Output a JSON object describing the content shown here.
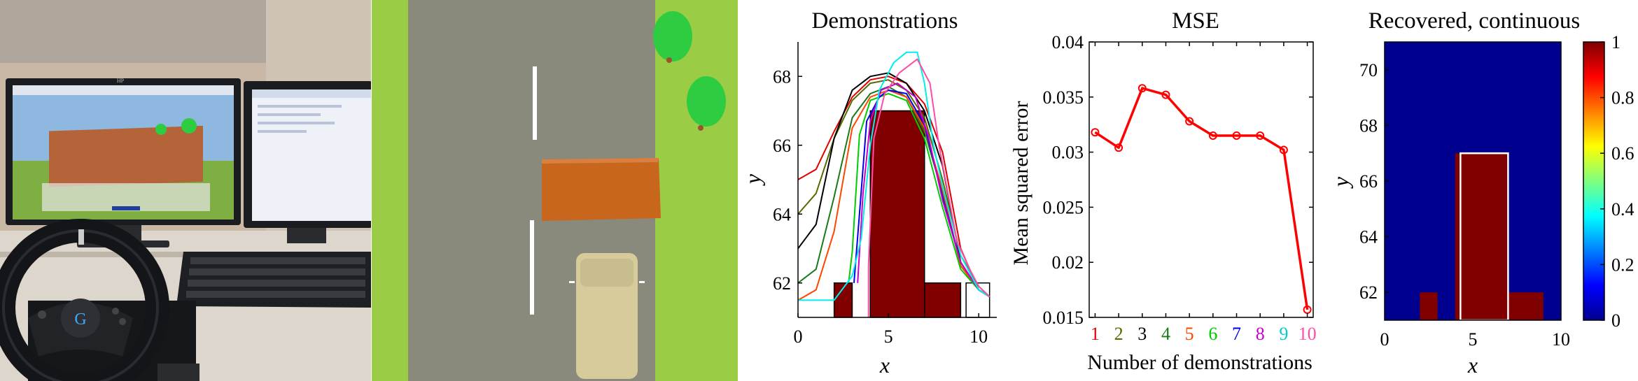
{
  "photo": {
    "monitor_brand": "HP",
    "wheel_logo": "G",
    "colors": {
      "wall": "#c9b8a6",
      "desk": "#ddd6cc",
      "monitor": "#1b1c20",
      "scene_sky": "#8fb8e0",
      "wall_obstacle": "#b5643a",
      "keyboard": "#1e1f22"
    }
  },
  "sim": {
    "colors": {
      "grass": "#9bcc45",
      "road": "#8a8a7c",
      "lane_mark": "#ffffff",
      "obstacle": "#c8661e",
      "car": "#d7cb9c",
      "tree": "#2ecc40",
      "trunk": "#a0522d"
    }
  },
  "chart_data": [
    {
      "type": "line",
      "title": "Demonstrations",
      "xlabel": "x",
      "ylabel": "y",
      "xlim": [
        0,
        11
      ],
      "ylim": [
        61,
        69
      ],
      "xticks": [
        "0",
        "5",
        "10"
      ],
      "yticks": [
        "62",
        "64",
        "66",
        "68"
      ],
      "grid": false,
      "obstacles": [
        {
          "x": [
            2,
            3
          ],
          "y": [
            61,
            62
          ]
        },
        {
          "x": [
            4,
            7
          ],
          "y": [
            61,
            67
          ]
        },
        {
          "x": [
            7,
            9
          ],
          "y": [
            61,
            62
          ]
        }
      ],
      "series": [
        {
          "color": "#e00000",
          "values": [
            [
              0,
              65
            ],
            [
              1,
              65.3
            ],
            [
              2,
              66.4
            ],
            [
              3,
              67.4
            ],
            [
              4,
              67.9
            ],
            [
              5,
              68
            ],
            [
              6,
              67.8
            ],
            [
              7,
              67.2
            ],
            [
              8,
              65.8
            ],
            [
              9,
              63
            ],
            [
              10,
              61.8
            ],
            [
              10.6,
              61.6
            ]
          ]
        },
        {
          "color": "#556b00",
          "values": [
            [
              0,
              64
            ],
            [
              1,
              64.6
            ],
            [
              2,
              66.2
            ],
            [
              3,
              67.3
            ],
            [
              4,
              67.8
            ],
            [
              5,
              67.9
            ],
            [
              6,
              67.6
            ],
            [
              7,
              66.8
            ],
            [
              8,
              65
            ],
            [
              9,
              62.8
            ],
            [
              10,
              61.9
            ],
            [
              10.6,
              61.6
            ]
          ]
        },
        {
          "color": "#000000",
          "values": [
            [
              0,
              63
            ],
            [
              1,
              63.7
            ],
            [
              2,
              66.2
            ],
            [
              3,
              67.6
            ],
            [
              4,
              68
            ],
            [
              5,
              68.1
            ],
            [
              6,
              67.8
            ],
            [
              7,
              67
            ],
            [
              8,
              65.4
            ],
            [
              9,
              62.6
            ],
            [
              10,
              61.8
            ],
            [
              10.6,
              61.6
            ]
          ]
        },
        {
          "color": "#1a7a1a",
          "values": [
            [
              0,
              62
            ],
            [
              1,
              62.4
            ],
            [
              2,
              64.5
            ],
            [
              3,
              66.8
            ],
            [
              4,
              67.5
            ],
            [
              5,
              67.7
            ],
            [
              6,
              67.4
            ],
            [
              7,
              66.4
            ],
            [
              8,
              64.6
            ],
            [
              9,
              62.5
            ],
            [
              10,
              61.8
            ],
            [
              10.6,
              61.6
            ]
          ]
        },
        {
          "color": "#ff4500",
          "values": [
            [
              0,
              61.5
            ],
            [
              1,
              61.8
            ],
            [
              2,
              63.5
            ],
            [
              3,
              66.5
            ],
            [
              4,
              67.4
            ],
            [
              5,
              67.6
            ],
            [
              6,
              67.4
            ],
            [
              7,
              66.5
            ],
            [
              8,
              64.7
            ],
            [
              9,
              62.5
            ],
            [
              10,
              61.8
            ],
            [
              10.6,
              61.6
            ]
          ]
        },
        {
          "color": "#00cc00",
          "values": [
            [
              2.8,
              62
            ],
            [
              3,
              62.9
            ],
            [
              3.4,
              66.3
            ],
            [
              4,
              67.3
            ],
            [
              5,
              67.5
            ],
            [
              6,
              67.3
            ],
            [
              7,
              66.2
            ],
            [
              8,
              64.2
            ],
            [
              9,
              62.4
            ],
            [
              10,
              61.8
            ],
            [
              10.6,
              61.6
            ]
          ]
        },
        {
          "color": "#0000ee",
          "values": [
            [
              3.1,
              62
            ],
            [
              3.4,
              64
            ],
            [
              3.8,
              66.7
            ],
            [
              4.5,
              67.4
            ],
            [
              5,
              67.6
            ],
            [
              6,
              67.5
            ],
            [
              7,
              66.6
            ],
            [
              8,
              64.5
            ],
            [
              9,
              62.6
            ],
            [
              10,
              61.8
            ],
            [
              10.6,
              61.6
            ]
          ]
        },
        {
          "color": "#cc00cc",
          "values": [
            [
              3.3,
              62
            ],
            [
              3.6,
              64.6
            ],
            [
              4,
              66.7
            ],
            [
              4.6,
              67.6
            ],
            [
              5.5,
              67.8
            ],
            [
              6.5,
              67.4
            ],
            [
              7.2,
              66.3
            ],
            [
              8,
              64.4
            ],
            [
              9,
              62.6
            ],
            [
              10,
              61.8
            ],
            [
              10.6,
              61.6
            ]
          ]
        },
        {
          "color": "#00eeee",
          "values": [
            [
              0,
              61.5
            ],
            [
              2,
              61.5
            ],
            [
              3,
              62.2
            ],
            [
              3.5,
              63.3
            ],
            [
              4,
              66
            ],
            [
              4.5,
              67.6
            ],
            [
              5.3,
              68.4
            ],
            [
              6,
              68.7
            ],
            [
              6.6,
              68.7
            ],
            [
              7,
              67.8
            ],
            [
              7.5,
              66
            ],
            [
              8,
              64.8
            ],
            [
              9,
              62.8
            ],
            [
              10,
              61.8
            ],
            [
              10.6,
              61.6
            ]
          ]
        },
        {
          "color": "#ff4da6",
          "values": [
            [
              3.9,
              61
            ],
            [
              3.9,
              62.5
            ],
            [
              4.2,
              66.2
            ],
            [
              4.8,
              67.5
            ],
            [
              5.6,
              68.1
            ],
            [
              6.6,
              68.5
            ],
            [
              7.3,
              67.8
            ],
            [
              7.8,
              66
            ],
            [
              8.8,
              63.2
            ],
            [
              9.5,
              62.4
            ],
            [
              10,
              61.9
            ],
            [
              10.6,
              61.6
            ]
          ]
        }
      ]
    },
    {
      "type": "line",
      "title": "MSE",
      "xlabel": "Number of demonstrations",
      "ylabel": "Mean squared error",
      "xlim": [
        0.75,
        10.25
      ],
      "ylim": [
        0.015,
        0.04
      ],
      "yticks": [
        "0.015",
        "0.02",
        "0.025",
        "0.03",
        "0.035",
        "0.04"
      ],
      "categories": [
        "1",
        "2",
        "3",
        "4",
        "5",
        "6",
        "7",
        "8",
        "9",
        "10"
      ],
      "category_colors": [
        "#e00000",
        "#556b00",
        "#000000",
        "#1a7a1a",
        "#ff4500",
        "#00cc00",
        "#0000ee",
        "#cc00cc",
        "#00cccc",
        "#ff4da6"
      ],
      "series": [
        {
          "color": "#ff0000",
          "values": [
            0.0318,
            0.0304,
            0.0358,
            0.0352,
            0.0328,
            0.0315,
            0.0315,
            0.0315,
            0.0302,
            0.0157
          ]
        }
      ]
    },
    {
      "type": "heatmap",
      "title": "Recovered, continuous",
      "xlabel": "x",
      "ylabel": "y",
      "xlim": [
        0,
        10
      ],
      "ylim": [
        61,
        71
      ],
      "xticks": [
        "0",
        "5",
        "10"
      ],
      "yticks": [
        "62",
        "64",
        "66",
        "68",
        "70"
      ],
      "background_value": 0,
      "cells": [
        {
          "x": [
            2,
            3
          ],
          "y": [
            61,
            62
          ],
          "value": 1
        },
        {
          "x": [
            4,
            7
          ],
          "y": [
            61,
            67
          ],
          "value": 1
        },
        {
          "x": [
            7,
            9
          ],
          "y": [
            61,
            62
          ],
          "value": 1
        }
      ],
      "outline": {
        "x": [
          4.3,
          7
        ],
        "y": [
          61,
          67
        ],
        "color": "#ffffff"
      },
      "colorbar": {
        "min": 0,
        "max": 1,
        "ticks": [
          "0",
          "0.2",
          "0.4",
          "0.6",
          "0.8",
          "1"
        ]
      }
    }
  ]
}
